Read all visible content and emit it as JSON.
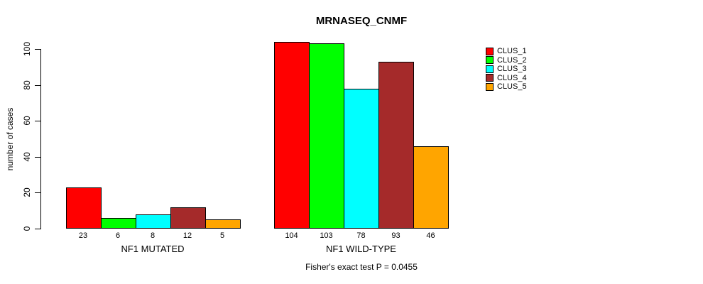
{
  "chart_data": {
    "type": "bar",
    "title": "MRNASEQ_CNMF",
    "ylabel": "number of cases",
    "xlabel": "",
    "annotation": "Fisher's exact test P = 0.0455",
    "categories": [
      "NF1 MUTATED",
      "NF1 WILD-TYPE"
    ],
    "series": [
      {
        "name": "CLUS_1",
        "color": "#FF0000",
        "values": [
          23,
          104
        ]
      },
      {
        "name": "CLUS_2",
        "color": "#00FF00",
        "values": [
          6,
          103
        ]
      },
      {
        "name": "CLUS_3",
        "color": "#00FFFF",
        "values": [
          8,
          78
        ]
      },
      {
        "name": "CLUS_4",
        "color": "#A52A2A",
        "values": [
          12,
          93
        ]
      },
      {
        "name": "CLUS_5",
        "color": "#FFA500",
        "values": [
          5,
          46
        ]
      }
    ],
    "yticks": [
      0,
      20,
      40,
      60,
      80,
      100
    ],
    "ylim": [
      0,
      100
    ],
    "bar_value_labels_shown": true,
    "legend_position": "top-right",
    "grid": false,
    "background": "#FFFFFF",
    "axis_color": "#000000"
  }
}
